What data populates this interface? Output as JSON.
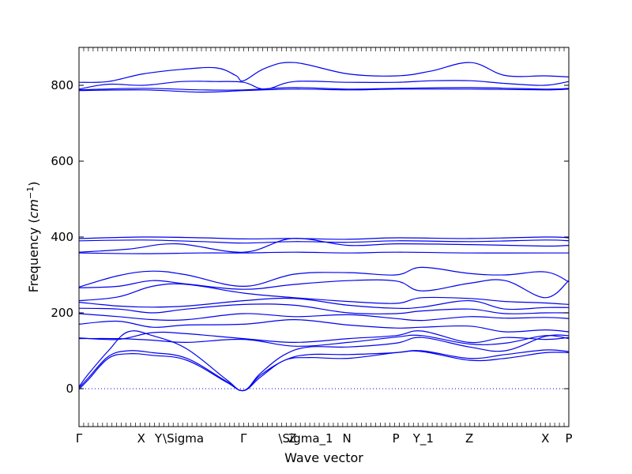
{
  "chart_data": {
    "type": "line",
    "xlabel": "Wave vector",
    "ylabel": "Frequency (",
    "ylabel_math": "cm",
    "ylabel_exp": "−1",
    "ylabel_close": ")",
    "ylim": [
      -100,
      900
    ],
    "xlim": [
      0,
      1
    ],
    "yticks": [
      {
        "value": 0,
        "label": "0"
      },
      {
        "value": 200,
        "label": "200"
      },
      {
        "value": 400,
        "label": "400"
      },
      {
        "value": 600,
        "label": "600"
      },
      {
        "value": 800,
        "label": "800"
      }
    ],
    "xticks": [
      {
        "value": 0.0,
        "label": "Γ"
      },
      {
        "value": 0.127,
        "label": "X"
      },
      {
        "value": 0.162,
        "label": "Y"
      },
      {
        "value": 0.213,
        "label": "\\Sigma"
      },
      {
        "value": 0.336,
        "label": "Γ"
      },
      {
        "value": 0.436,
        "label": "Z"
      },
      {
        "value": 0.463,
        "label": "\\Sigma_1"
      },
      {
        "value": 0.547,
        "label": "N"
      },
      {
        "value": 0.647,
        "label": "P"
      },
      {
        "value": 0.703,
        "label": "Y_1"
      },
      {
        "value": 0.797,
        "label": "Z"
      },
      {
        "value": 0.952,
        "label": "X"
      },
      {
        "value": 1.0,
        "label": "P"
      }
    ],
    "grid": false,
    "legend": "none",
    "series": [
      {
        "x": [
          0,
          0.06,
          0.13,
          0.21,
          0.28,
          0.32,
          0.336,
          0.38,
          0.44,
          0.55,
          0.65,
          0.72,
          0.8,
          0.87,
          0.95,
          1.0
        ],
        "y": [
          808,
          810,
          830,
          842,
          846,
          826,
          812,
          845,
          860,
          830,
          825,
          838,
          860,
          826,
          825,
          822
        ]
      },
      {
        "x": [
          0,
          0.06,
          0.13,
          0.21,
          0.28,
          0.336,
          0.38,
          0.44,
          0.55,
          0.65,
          0.72,
          0.8,
          0.87,
          0.95,
          1.0
        ],
        "y": [
          790,
          803,
          800,
          810,
          810,
          808,
          790,
          810,
          808,
          808,
          812,
          812,
          805,
          800,
          810
        ]
      },
      {
        "x": [
          0,
          0.13,
          0.25,
          0.336,
          0.44,
          0.55,
          0.65,
          0.8,
          0.95,
          1.0
        ],
        "y": [
          788,
          792,
          788,
          788,
          794,
          790,
          792,
          794,
          790,
          792
        ]
      },
      {
        "x": [
          0,
          0.13,
          0.25,
          0.336,
          0.44,
          0.55,
          0.65,
          0.8,
          0.95,
          1.0
        ],
        "y": [
          786,
          788,
          782,
          786,
          790,
          788,
          790,
          790,
          788,
          790
        ]
      },
      {
        "x": [
          0,
          0.13,
          0.25,
          0.336,
          0.44,
          0.55,
          0.65,
          0.8,
          0.95,
          1.0
        ],
        "y": [
          396,
          400,
          398,
          395,
          396,
          394,
          398,
          396,
          400,
          398
        ]
      },
      {
        "x": [
          0,
          0.13,
          0.25,
          0.336,
          0.44,
          0.55,
          0.65,
          0.8,
          0.95,
          1.0
        ],
        "y": [
          390,
          392,
          388,
          384,
          388,
          386,
          390,
          388,
          392,
          390
        ]
      },
      {
        "x": [
          0,
          0.1,
          0.2,
          0.336,
          0.436,
          0.55,
          0.65,
          0.8,
          0.95,
          1.0
        ],
        "y": [
          360,
          368,
          382,
          360,
          396,
          378,
          382,
          380,
          376,
          378
        ]
      },
      {
        "x": [
          0,
          0.13,
          0.25,
          0.336,
          0.44,
          0.55,
          0.65,
          0.8,
          0.95,
          1.0
        ],
        "y": [
          358,
          356,
          358,
          358,
          360,
          358,
          360,
          358,
          358,
          358
        ]
      },
      {
        "x": [
          0,
          0.08,
          0.15,
          0.22,
          0.336,
          0.44,
          0.55,
          0.647,
          0.7,
          0.797,
          0.87,
          0.952,
          1.0
        ],
        "y": [
          268,
          298,
          310,
          300,
          270,
          302,
          306,
          300,
          320,
          304,
          300,
          308,
          282
        ]
      },
      {
        "x": [
          0,
          0.08,
          0.15,
          0.22,
          0.336,
          0.44,
          0.55,
          0.647,
          0.7,
          0.797,
          0.87,
          0.952,
          1.0
        ],
        "y": [
          266,
          270,
          285,
          276,
          262,
          275,
          285,
          284,
          258,
          278,
          285,
          240,
          285
        ]
      },
      {
        "x": [
          0,
          0.08,
          0.15,
          0.22,
          0.336,
          0.44,
          0.55,
          0.647,
          0.7,
          0.797,
          0.87,
          0.952,
          1.0
        ],
        "y": [
          232,
          242,
          270,
          275,
          252,
          240,
          230,
          225,
          240,
          238,
          230,
          226,
          222
        ]
      },
      {
        "x": [
          0,
          0.08,
          0.15,
          0.22,
          0.336,
          0.44,
          0.55,
          0.647,
          0.7,
          0.797,
          0.87,
          0.952,
          1.0
        ],
        "y": [
          228,
          218,
          215,
          218,
          232,
          238,
          220,
          212,
          215,
          232,
          210,
          214,
          214
        ]
      },
      {
        "x": [
          0,
          0.08,
          0.15,
          0.22,
          0.336,
          0.44,
          0.55,
          0.647,
          0.7,
          0.797,
          0.87,
          0.952,
          1.0
        ],
        "y": [
          212,
          210,
          200,
          210,
          222,
          220,
          200,
          198,
          205,
          210,
          198,
          200,
          200
        ]
      },
      {
        "x": [
          0,
          0.08,
          0.15,
          0.22,
          0.336,
          0.44,
          0.55,
          0.647,
          0.7,
          0.797,
          0.87,
          0.952,
          1.0
        ],
        "y": [
          198,
          190,
          182,
          182,
          198,
          190,
          195,
          185,
          180,
          190,
          186,
          188,
          185
        ]
      },
      {
        "x": [
          0,
          0.08,
          0.15,
          0.22,
          0.336,
          0.44,
          0.55,
          0.647,
          0.7,
          0.797,
          0.87,
          0.952,
          1.0
        ],
        "y": [
          170,
          178,
          162,
          168,
          170,
          182,
          168,
          160,
          162,
          165,
          150,
          155,
          150
        ]
      },
      {
        "x": [
          0,
          0.08,
          0.15,
          0.22,
          0.336,
          0.44,
          0.55,
          0.647,
          0.7,
          0.797,
          0.87,
          0.952,
          1.0
        ],
        "y": [
          134,
          130,
          148,
          145,
          132,
          122,
          132,
          140,
          152,
          122,
          135,
          130,
          135
        ]
      },
      {
        "x": [
          0,
          0.08,
          0.15,
          0.22,
          0.336,
          0.44,
          0.55,
          0.647,
          0.7,
          0.797,
          0.87,
          0.952,
          1.0
        ],
        "y": [
          132,
          132,
          128,
          122,
          130,
          112,
          122,
          136,
          140,
          118,
          120,
          140,
          132
        ]
      },
      {
        "x": [
          0,
          0.02,
          0.06,
          0.1,
          0.15,
          0.22,
          0.3,
          0.336,
          0.37,
          0.42,
          0.47,
          0.55,
          0.647,
          0.7,
          0.797,
          0.87,
          0.952,
          1.0
        ],
        "y": [
          5,
          40,
          100,
          150,
          140,
          105,
          25,
          -5,
          40,
          90,
          110,
          110,
          120,
          135,
          110,
          100,
          138,
          140
        ]
      },
      {
        "x": [
          0,
          0.02,
          0.06,
          0.1,
          0.15,
          0.22,
          0.3,
          0.336,
          0.37,
          0.42,
          0.47,
          0.55,
          0.647,
          0.7,
          0.797,
          0.87,
          0.952,
          1.0
        ],
        "y": [
          2,
          30,
          85,
          100,
          95,
          80,
          20,
          -5,
          35,
          75,
          90,
          90,
          95,
          100,
          80,
          90,
          102,
          98
        ]
      },
      {
        "x": [
          0,
          0.02,
          0.06,
          0.1,
          0.15,
          0.22,
          0.3,
          0.336,
          0.37,
          0.42,
          0.47,
          0.55,
          0.647,
          0.7,
          0.797,
          0.87,
          0.952,
          1.0
        ],
        "y": [
          -2,
          25,
          80,
          92,
          88,
          75,
          18,
          -5,
          30,
          75,
          82,
          80,
          95,
          98,
          75,
          80,
          95,
          95
        ]
      }
    ]
  }
}
